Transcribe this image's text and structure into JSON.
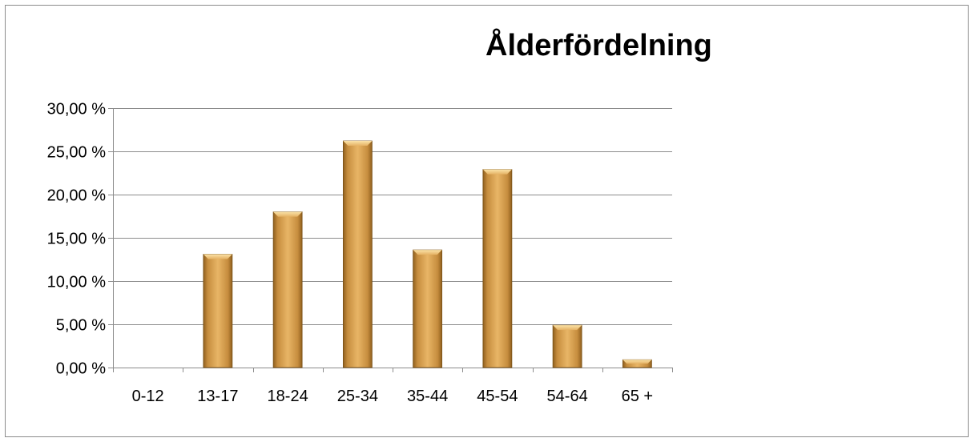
{
  "chart_data": {
    "type": "bar",
    "title": "Ålderfördelning",
    "xlabel": "",
    "ylabel": "",
    "categories": [
      "0-12",
      "13-17",
      "18-24",
      "25-34",
      "35-44",
      "45-54",
      "54-64",
      "65 +"
    ],
    "values": [
      0.0,
      13.1,
      18.0,
      26.2,
      13.6,
      22.9,
      4.9,
      0.9
    ],
    "ylim": [
      0,
      30
    ],
    "yticks": [
      0,
      5,
      10,
      15,
      20,
      25,
      30
    ],
    "ytick_labels": [
      "0,00 %",
      "5,00 %",
      "10,00 %",
      "15,00 %",
      "20,00 %",
      "25,00 %",
      "30,00 %"
    ],
    "grid": true,
    "legend": "none",
    "colors": {
      "bar_light": "#e9b867",
      "bar_mid": "#d39b48",
      "bar_dark": "#9b6a24",
      "grid": "#8c8c8c"
    }
  }
}
